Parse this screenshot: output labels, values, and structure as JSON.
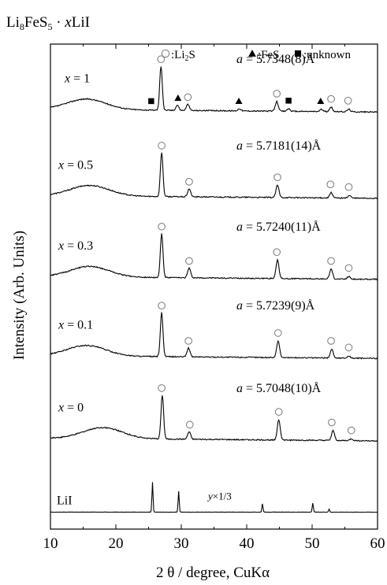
{
  "chart_data": {
    "type": "line",
    "title_parts": {
      "a": "Li",
      "b": "8",
      "c": "FeS",
      "d": "5",
      "e": " · ",
      "f": "x",
      "g": "LiI"
    },
    "xlabel": "2 θ / degree, CuKα",
    "ylabel": "Intensity (Arb. Units)",
    "xlim": [
      10,
      60
    ],
    "xticks": [
      10,
      20,
      30,
      40,
      50,
      60
    ],
    "grid": false,
    "legend": {
      "placement": "top-right",
      "items": [
        {
          "symbol": "circle",
          "label_pre": ":Li",
          "label_sub": "2",
          "label_post": "S"
        },
        {
          "symbol": "triangle",
          "label_pre": ":FeS",
          "label_sub": "",
          "label_post": ""
        },
        {
          "symbol": "square",
          "label_pre": ":unknown",
          "label_sub": "",
          "label_post": ""
        }
      ]
    },
    "series": [
      {
        "name_var": "x",
        "name_eq": " = 1",
        "annotation_var": "a",
        "annotation_eq": " = 5.7348(8)Å",
        "baseline_frac": 0.86,
        "hump": [
          15.5,
          1.6,
          0.24
        ],
        "peaks": [
          [
            26.9,
            1.0
          ],
          [
            29.4,
            0.12
          ],
          [
            31.0,
            0.14
          ],
          [
            38.9,
            0.05
          ],
          [
            44.6,
            0.22
          ],
          [
            46.4,
            0.06
          ],
          [
            51.4,
            0.05
          ],
          [
            52.9,
            0.1
          ],
          [
            55.6,
            0.06
          ]
        ],
        "markers": [
          {
            "type": "square",
            "x": 25.4
          },
          {
            "type": "circle",
            "x": 26.9
          },
          {
            "type": "triangle",
            "x": 29.5
          },
          {
            "type": "circle",
            "x": 31.0
          },
          {
            "type": "triangle",
            "x": 38.8
          },
          {
            "type": "circle",
            "x": 44.6
          },
          {
            "type": "square",
            "x": 46.4
          },
          {
            "type": "triangle",
            "x": 51.3
          },
          {
            "type": "circle",
            "x": 52.9
          },
          {
            "type": "circle",
            "x": 55.5
          }
        ]
      },
      {
        "name_var": "x",
        "name_eq": " = 0.5",
        "annotation_var": "a",
        "annotation_eq": " = 5.7181(14)Å",
        "baseline_frac": 0.682,
        "hump": [
          16.0,
          0.9,
          0.24
        ],
        "peaks": [
          [
            27.0,
            1.0
          ],
          [
            31.2,
            0.18
          ],
          [
            44.7,
            0.28
          ],
          [
            52.9,
            0.12
          ],
          [
            55.7,
            0.06
          ]
        ],
        "markers": [
          {
            "type": "circle",
            "x": 27.0
          },
          {
            "type": "circle",
            "x": 31.2
          },
          {
            "type": "circle",
            "x": 44.7
          },
          {
            "type": "circle",
            "x": 52.8
          },
          {
            "type": "circle",
            "x": 55.6
          }
        ]
      },
      {
        "name_var": "x",
        "name_eq": " = 0.3",
        "annotation_var": "a",
        "annotation_eq": " = 5.7240(11)Å",
        "baseline_frac": 0.515,
        "hump": [
          16.0,
          1.0,
          0.24
        ],
        "peaks": [
          [
            27.0,
            1.0
          ],
          [
            31.2,
            0.22
          ],
          [
            44.7,
            0.42
          ],
          [
            52.9,
            0.22
          ],
          [
            55.6,
            0.06
          ]
        ],
        "markers": [
          {
            "type": "circle",
            "x": 27.0
          },
          {
            "type": "circle",
            "x": 31.2
          },
          {
            "type": "circle",
            "x": 44.6
          },
          {
            "type": "circle",
            "x": 52.9
          },
          {
            "type": "circle",
            "x": 55.6
          }
        ]
      },
      {
        "name_var": "x",
        "name_eq": " = 0.1",
        "annotation_var": "a",
        "annotation_eq": " = 5.7239(9)Å",
        "baseline_frac": 0.352,
        "hump": [
          15.5,
          0.95,
          0.24
        ],
        "peaks": [
          [
            27.0,
            1.0
          ],
          [
            31.1,
            0.2
          ],
          [
            44.8,
            0.38
          ],
          [
            53.0,
            0.2
          ],
          [
            55.6,
            0.05
          ]
        ],
        "markers": [
          {
            "type": "circle",
            "x": 27.0
          },
          {
            "type": "circle",
            "x": 31.1
          },
          {
            "type": "circle",
            "x": 44.8
          },
          {
            "type": "circle",
            "x": 52.9
          },
          {
            "type": "circle",
            "x": 55.6
          }
        ]
      },
      {
        "name_var": "x",
        "name_eq": " = 0",
        "annotation_var": "a",
        "annotation_eq": " = 5.7048(10)Å",
        "baseline_frac": 0.182,
        "hump": [
          18.0,
          0.78,
          0.25
        ],
        "peaks": [
          [
            27.1,
            1.0
          ],
          [
            31.2,
            0.17
          ],
          [
            44.9,
            0.46
          ],
          [
            53.2,
            0.22
          ],
          [
            56.0,
            0.04
          ]
        ],
        "markers": [
          {
            "type": "circle",
            "x": 27.0
          },
          {
            "type": "circle",
            "x": 31.3
          },
          {
            "type": "circle",
            "x": 44.9
          },
          {
            "type": "circle",
            "x": 53.0
          },
          {
            "type": "circle",
            "x": 56.0
          }
        ]
      },
      {
        "name_var": "",
        "name_eq": "LiI",
        "annotation_var": "",
        "annotation_eq": "",
        "scale_var": "y",
        "scale_eq": "×1/3",
        "baseline_frac": 0.035,
        "hump": [
          20.0,
          0.0,
          0.0
        ],
        "peaks": [
          [
            25.6,
            1.0
          ],
          [
            29.6,
            0.7
          ],
          [
            42.4,
            0.28
          ],
          [
            50.1,
            0.3
          ],
          [
            52.6,
            0.1
          ]
        ],
        "markers": []
      }
    ]
  }
}
